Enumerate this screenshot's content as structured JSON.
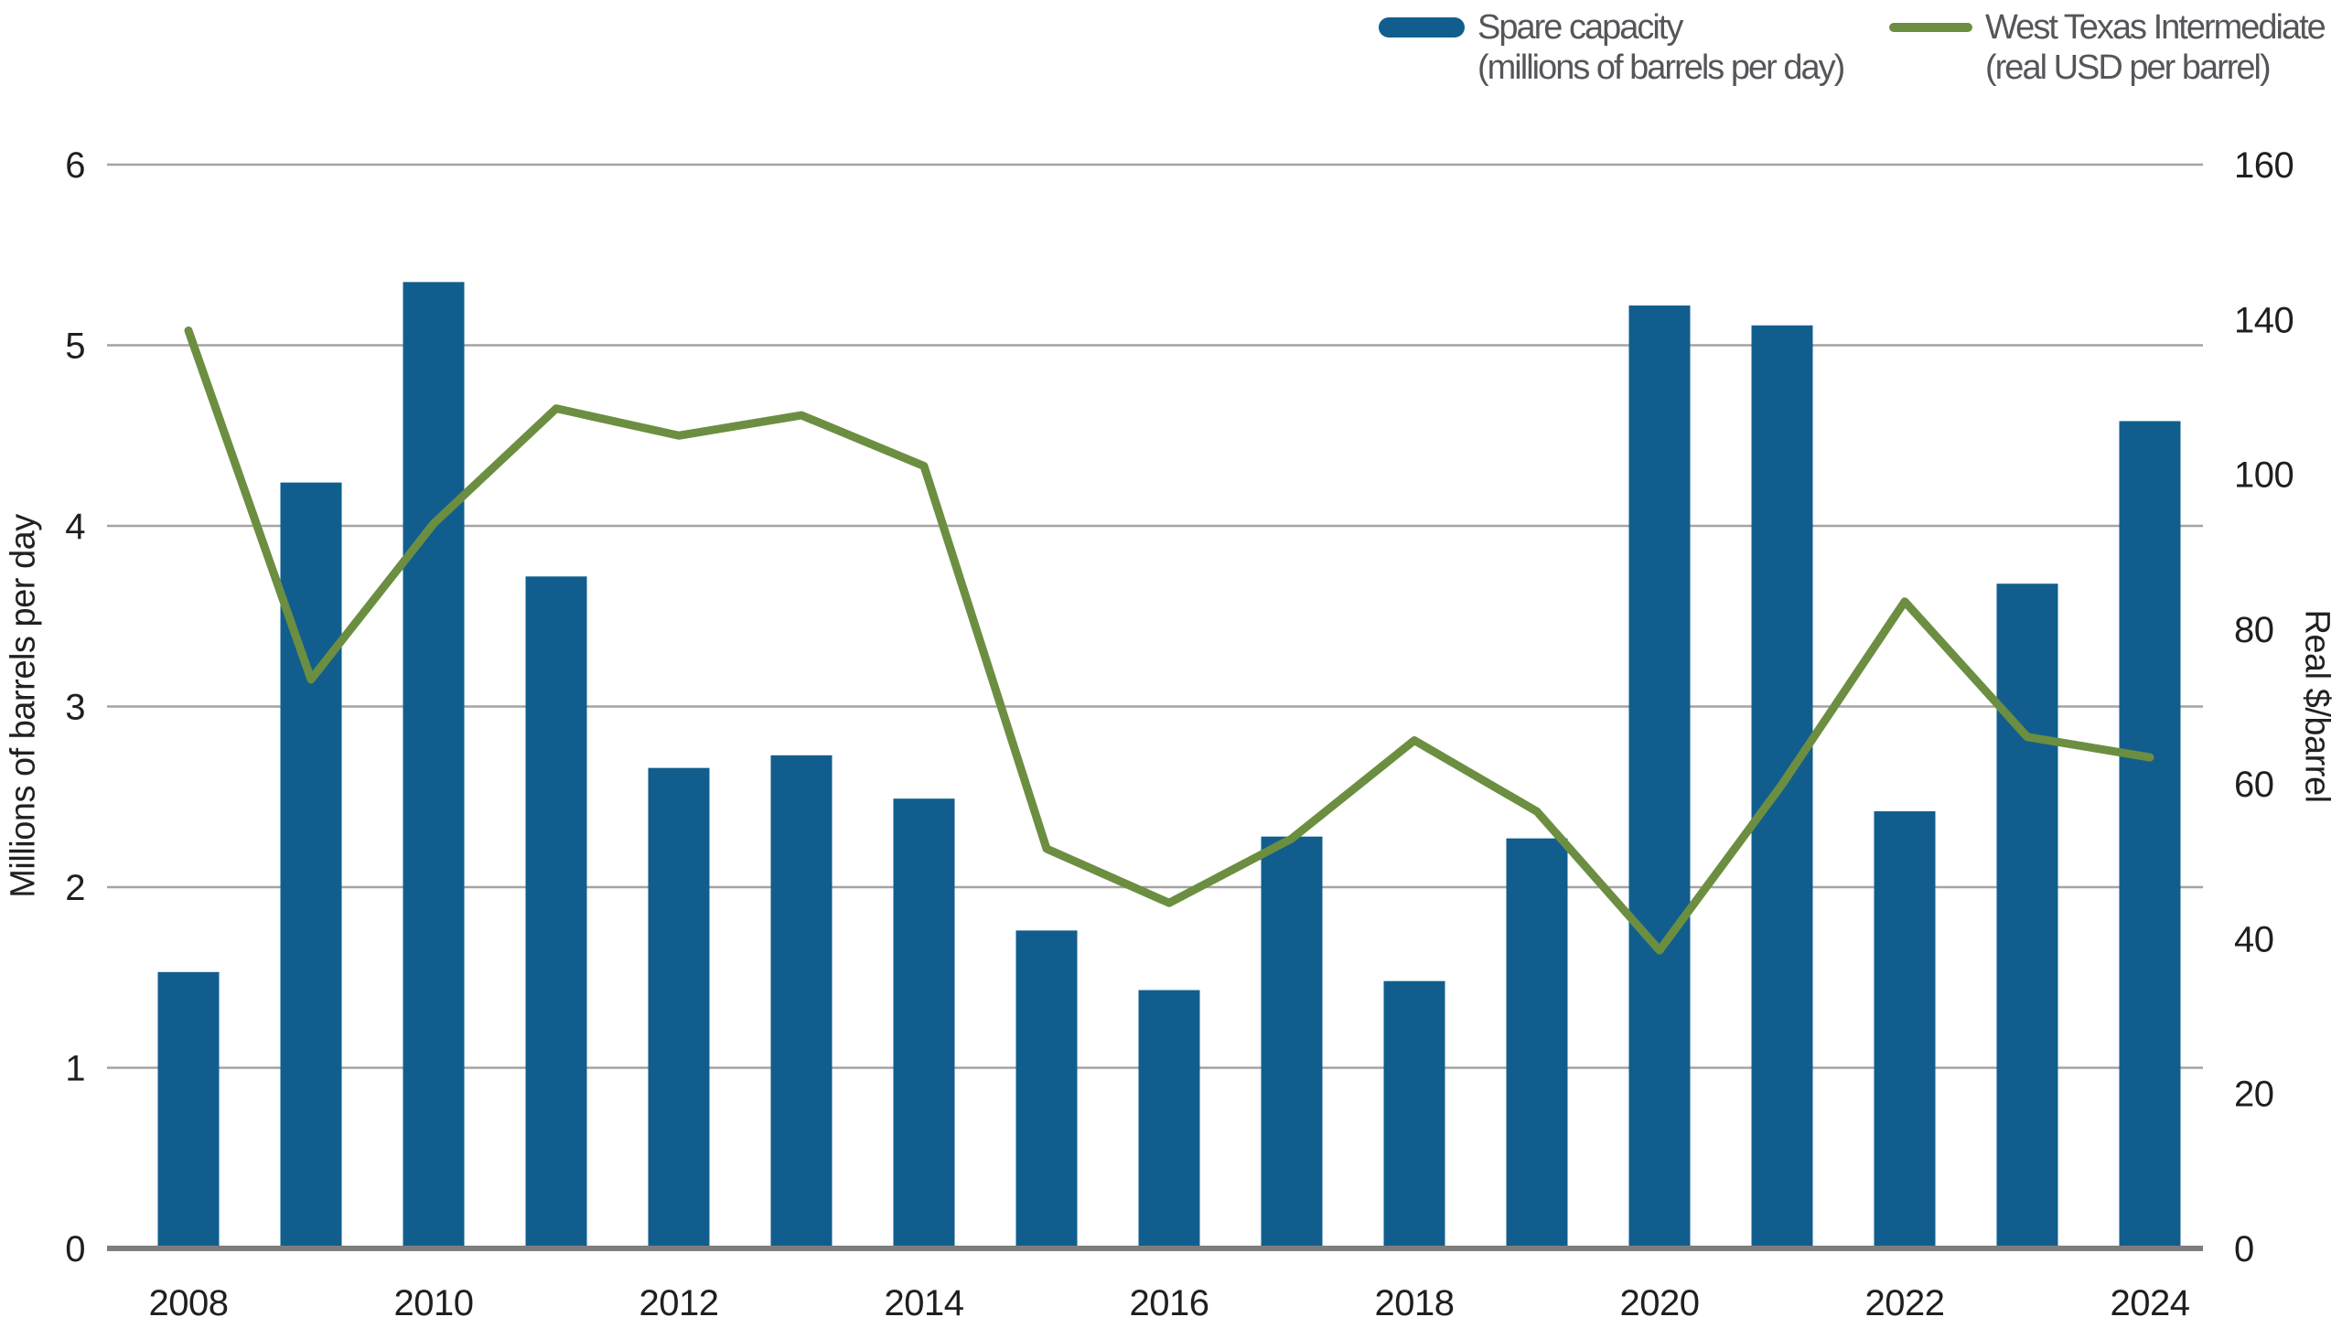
{
  "legend": {
    "items": [
      {
        "id": "spare-capacity",
        "swatch": "bar-swatch",
        "color": "#115e8e",
        "label_line1": "Spare capacity",
        "label_line2": "(millions of barrels per day)"
      },
      {
        "id": "wti",
        "swatch": "line-swatch",
        "color": "#6c8e41",
        "label_line1": "West Texas Intermediate",
        "label_line2": "(real USD per barrel)"
      }
    ]
  },
  "left_axis": {
    "title": "Millions of barrels per day",
    "tick_labels": [
      "0",
      "1",
      "2",
      "3",
      "4",
      "5",
      "6"
    ],
    "min": 0,
    "max": 6
  },
  "right_axis": {
    "title": "Real $/barrel",
    "tick_labels_top_to_bottom": [
      "160",
      "140",
      "100",
      "80",
      "60",
      "40",
      "20",
      "0"
    ],
    "min": 0,
    "max": 160,
    "note": "labels rendered equally spaced exactly as in source; a 120 label is not shown"
  },
  "x_axis": {
    "tick_labels": [
      "2008",
      "2010",
      "2012",
      "2014",
      "2016",
      "2018",
      "2020",
      "2022",
      "2024"
    ]
  },
  "chart_data": {
    "type": "bar+line dual-axis",
    "categories": [
      2008,
      2009,
      2010,
      2011,
      2012,
      2013,
      2014,
      2015,
      2016,
      2017,
      2018,
      2019,
      2020,
      2021,
      2022,
      2023,
      2024
    ],
    "series": [
      {
        "name": "Spare capacity (millions of barrels per day)",
        "type": "bar",
        "axis": "left",
        "color": "#115e8e",
        "values": [
          1.53,
          4.24,
          5.35,
          3.72,
          2.66,
          2.73,
          2.49,
          1.76,
          1.43,
          2.28,
          1.48,
          2.27,
          5.22,
          5.11,
          2.42,
          3.68,
          4.58
        ]
      },
      {
        "name": "West Texas Intermediate (real USD per barrel)",
        "type": "line",
        "axis": "right",
        "color": "#6c8e41",
        "values": [
          135.5,
          84,
          107,
          124,
          120,
          123,
          115.5,
          59,
          51,
          60.5,
          75,
          64.5,
          44,
          68.5,
          95.5,
          75.5,
          72.5
        ]
      }
    ],
    "left_axis_range": [
      0,
      6
    ],
    "right_axis_range": [
      0,
      160
    ],
    "grid": true,
    "legend_position": "top-right"
  },
  "colors": {
    "bar": "#115e8e",
    "line": "#6c8e41",
    "gridline": "#a3a3a3",
    "axis_line": "#7d7d7d",
    "tick_text": "#1f1f1f",
    "legend_text": "#54565a",
    "background": "#ffffff"
  }
}
